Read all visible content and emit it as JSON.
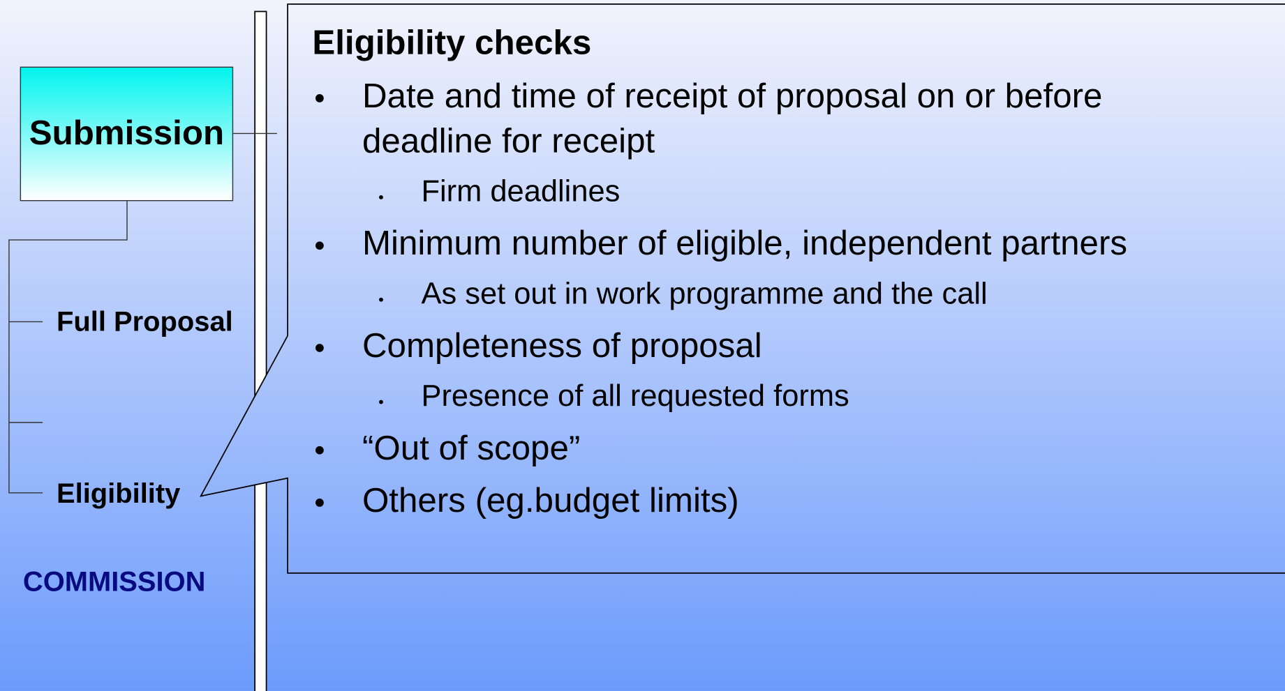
{
  "diagram": {
    "nodes": [
      {
        "label": "Submission"
      },
      {
        "label": "Full Proposal"
      },
      {
        "label": "Eligibility"
      }
    ],
    "footer": "COMMISSION"
  },
  "callout": {
    "title": "Eligibility checks",
    "bullets": [
      {
        "text": "Date and time of receipt of proposal on or before deadline for receipt",
        "sub": [
          "Firm deadlines"
        ]
      },
      {
        "text": "Minimum number of eligible, independent partners",
        "sub": [
          "As set out in work programme and the call"
        ]
      },
      {
        "text": "Completeness of proposal",
        "sub": [
          "Presence of all requested forms"
        ]
      },
      {
        "text": "“Out of scope”",
        "sub": []
      },
      {
        "text": "Others (eg.budget limits)",
        "sub": []
      }
    ]
  }
}
